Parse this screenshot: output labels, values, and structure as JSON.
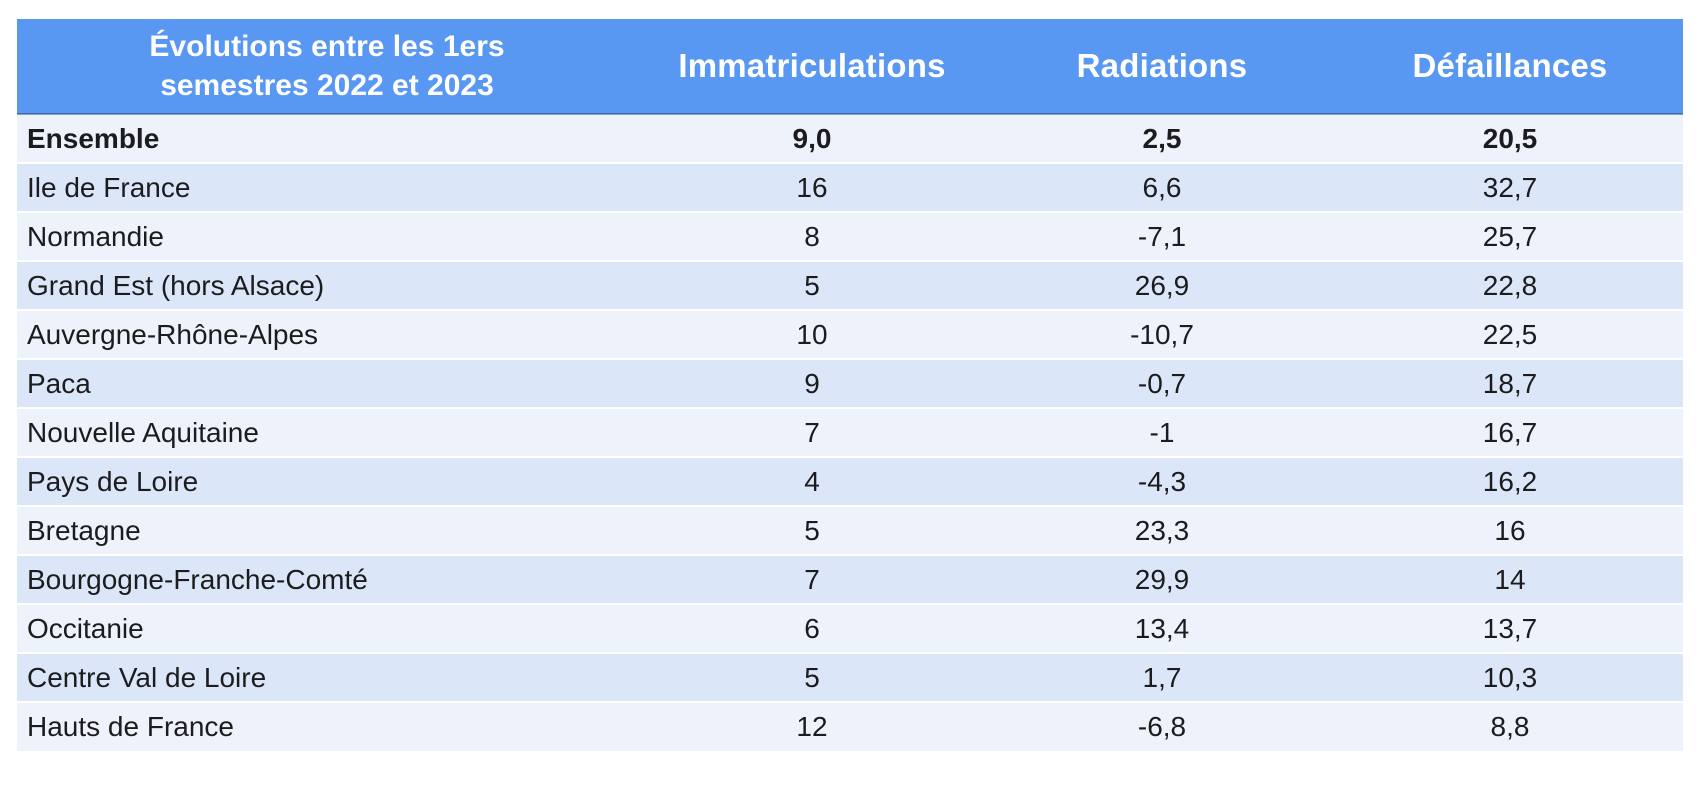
{
  "chart_data": {
    "type": "table",
    "title": "Évolutions entre les 1ers semestres 2022 et 2023",
    "columns": [
      "Immatriculations",
      "Radiations",
      "Défaillances"
    ],
    "rows": [
      {
        "label": "Ensemble",
        "values": [
          "9,0",
          "2,5",
          "20,5"
        ],
        "bold": true
      },
      {
        "label": "Ile de France",
        "values": [
          "16",
          "6,6",
          "32,7"
        ],
        "bold": false
      },
      {
        "label": "Normandie",
        "values": [
          "8",
          "-7,1",
          "25,7"
        ],
        "bold": false
      },
      {
        "label": "Grand Est (hors Alsace)",
        "values": [
          "5",
          "26,9",
          "22,8"
        ],
        "bold": false
      },
      {
        "label": "Auvergne-Rhône-Alpes",
        "values": [
          "10",
          "-10,7",
          "22,5"
        ],
        "bold": false
      },
      {
        "label": "Paca",
        "values": [
          "9",
          "-0,7",
          "18,7"
        ],
        "bold": false
      },
      {
        "label": "Nouvelle Aquitaine",
        "values": [
          "7",
          "-1",
          "16,7"
        ],
        "bold": false
      },
      {
        "label": "Pays de Loire",
        "values": [
          "4",
          "-4,3",
          "16,2"
        ],
        "bold": false
      },
      {
        "label": "Bretagne",
        "values": [
          "5",
          "23,3",
          "16"
        ],
        "bold": false
      },
      {
        "label": "Bourgogne-Franche-Comté",
        "values": [
          "7",
          "29,9",
          "14"
        ],
        "bold": false
      },
      {
        "label": "Occitanie",
        "values": [
          "6",
          "13,4",
          "13,7"
        ],
        "bold": false
      },
      {
        "label": "Centre Val de Loire",
        "values": [
          "5",
          "1,7",
          "10,3"
        ],
        "bold": false
      },
      {
        "label": "Hauts de France",
        "values": [
          "12",
          "-6,8",
          "8,8"
        ],
        "bold": false
      }
    ],
    "layout_hints": {
      "summary_row": "Ensemble",
      "header_position": "top",
      "row_striping": true
    }
  },
  "colors": {
    "header_bg": "#5897F2",
    "header_text": "#FFFFFF",
    "row_light": "#EDF2FB",
    "row_dark": "#DBE7F8",
    "body_text": "#1C1C1E",
    "row_separator": "#FFFFFF"
  }
}
